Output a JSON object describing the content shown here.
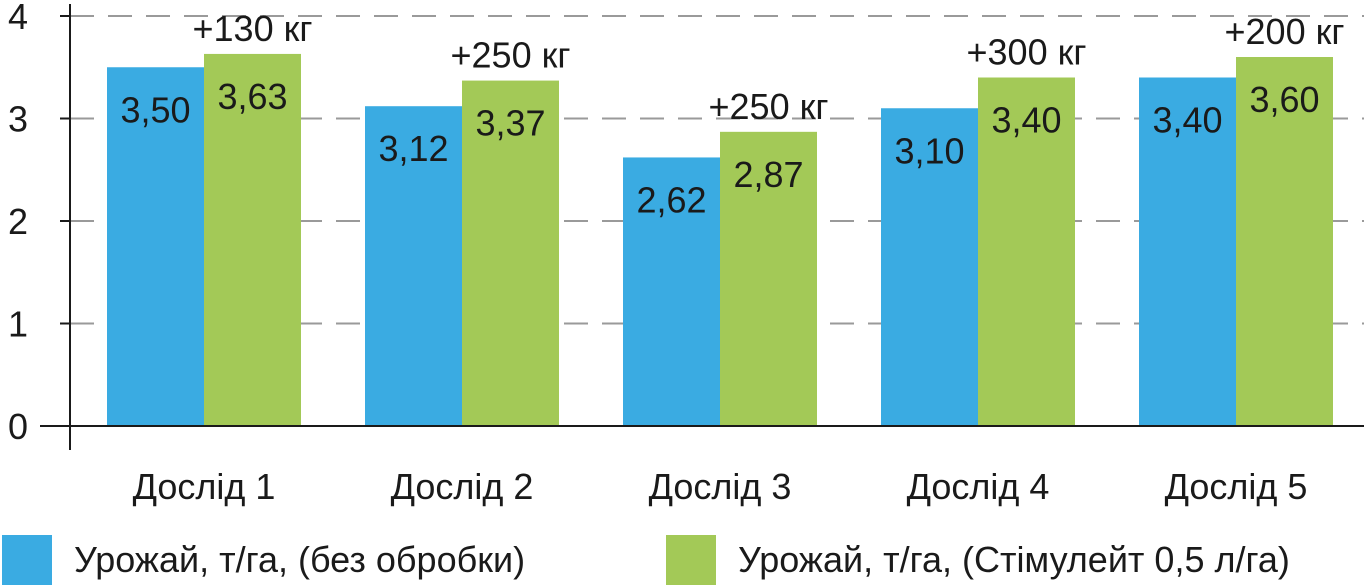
{
  "chart_data": {
    "type": "bar",
    "categories": [
      "Дослід 1",
      "Дослід 2",
      "Дослід 3",
      "Дослід 4",
      "Дослід 5"
    ],
    "series": [
      {
        "name": "Урожай, т/га, (без обробки)",
        "values": [
          3.5,
          3.12,
          2.62,
          3.1,
          3.4
        ],
        "labels": [
          "3,50",
          "3,12",
          "2,62",
          "3,10",
          "3,40"
        ],
        "color": "#3aabe2"
      },
      {
        "name": "Урожай, т/га, (Стімулейт 0,5 л/га)",
        "values": [
          3.63,
          3.37,
          2.87,
          3.4,
          3.6
        ],
        "labels": [
          "3,63",
          "3,37",
          "2,87",
          "3,40",
          "3,60"
        ],
        "color": "#a3c957"
      }
    ],
    "annotations": [
      "+130 кг",
      "+250 кг",
      "+250 кг",
      "+300 кг",
      "+200 кг"
    ],
    "yticks": [
      "0",
      "1",
      "2",
      "3",
      "4"
    ],
    "ylim": [
      0,
      4
    ],
    "grid": "horizontal dashed",
    "legend": "bottom"
  },
  "colors": {
    "grid": "#9a9a9a",
    "axis": "#1a1a1a"
  }
}
